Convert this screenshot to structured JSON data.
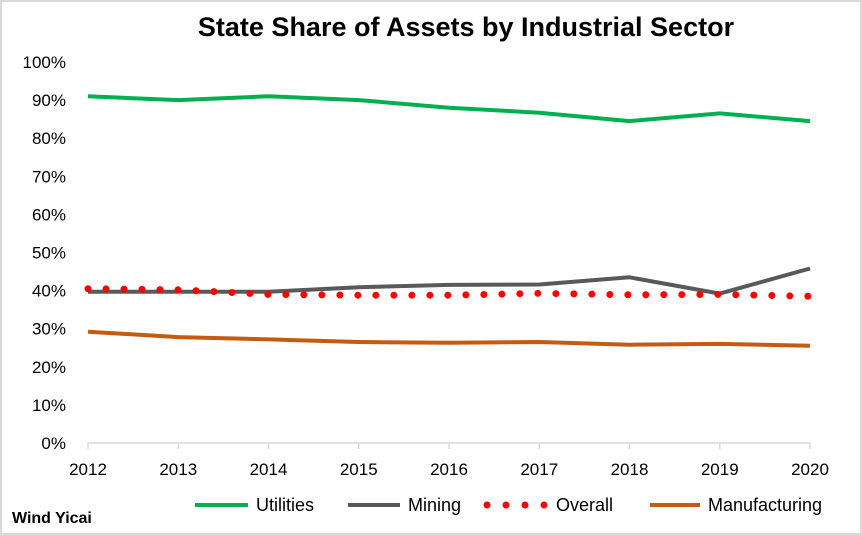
{
  "chart_data": {
    "type": "line",
    "title": "State Share of Assets by Industrial Sector",
    "x": [
      "2012",
      "2013",
      "2014",
      "2015",
      "2016",
      "2017",
      "2018",
      "2019",
      "2020"
    ],
    "ylim": [
      0,
      100
    ],
    "yticks": [
      "0%",
      "10%",
      "20%",
      "30%",
      "40%",
      "50%",
      "60%",
      "70%",
      "80%",
      "90%",
      "100%"
    ],
    "grid": false,
    "legend_position": "bottom",
    "series": [
      {
        "name": "Utilities",
        "color": "#00b050",
        "style": "solid",
        "values": [
          91,
          90,
          91,
          90,
          88,
          86.7,
          84.5,
          86.5,
          84.5
        ]
      },
      {
        "name": "Mining",
        "color": "#595959",
        "style": "solid",
        "values": [
          39.7,
          39.7,
          39.7,
          40.9,
          41.5,
          41.6,
          43.5,
          39.2,
          45.8
        ]
      },
      {
        "name": "Overall",
        "color": "#ff0000",
        "style": "dotted",
        "values": [
          40.5,
          40.2,
          39,
          38.8,
          38.8,
          39.3,
          38.9,
          39,
          38.5
        ]
      },
      {
        "name": "Manufacturing",
        "color": "#c55a11",
        "style": "solid",
        "values": [
          29.2,
          27.8,
          27.2,
          26.5,
          26.3,
          26.5,
          25.8,
          26,
          25.5
        ]
      }
    ],
    "source": "Wind Yicai"
  }
}
